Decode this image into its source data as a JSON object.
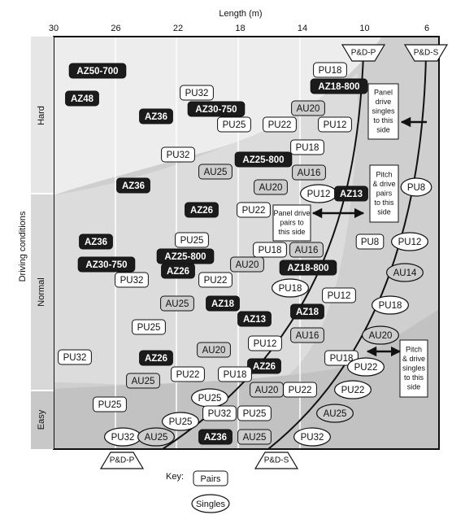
{
  "chart_data": {
    "type": "table",
    "xlabel": "Length (m)",
    "ylabel": "Driving conditions",
    "x_ticks": [
      30,
      26,
      22,
      18,
      14,
      10,
      6
    ],
    "xlim": [
      30,
      6
    ],
    "y_bands": [
      "Hard",
      "Normal",
      "Easy"
    ],
    "top_markers": [
      "P&D-P",
      "P&D-S"
    ],
    "bottom_markers": [
      "P&D-P",
      "P&D-S"
    ],
    "key": {
      "title": "Key:",
      "pairs": "Pairs",
      "singles": "Singles"
    },
    "annotations": [
      [
        "Panel",
        "drive",
        "singles",
        "to this",
        "side"
      ],
      [
        "Pitch",
        "& drive",
        "pairs",
        "to this",
        "side"
      ],
      [
        "Panel drive",
        "pairs to",
        "this side"
      ],
      [
        "Pitch",
        "& drive",
        "singles",
        "to this",
        "side"
      ]
    ],
    "boxes": [
      {
        "label": "AZ50-700",
        "style": "dark"
      },
      {
        "label": "AZ48",
        "style": "dark"
      },
      {
        "label": "PU18",
        "style": "white"
      },
      {
        "label": "AZ18-800",
        "style": "dark"
      },
      {
        "label": "PU32",
        "style": "white"
      },
      {
        "label": "AU20",
        "style": "grey"
      },
      {
        "label": "AZ30-750",
        "style": "dark"
      },
      {
        "label": "AZ36",
        "style": "dark"
      },
      {
        "label": "PU25",
        "style": "white"
      },
      {
        "label": "PU22",
        "style": "white"
      },
      {
        "label": "PU12",
        "style": "white"
      },
      {
        "label": "PU18",
        "style": "white"
      },
      {
        "label": "PU32",
        "style": "white"
      },
      {
        "label": "AZ25-800",
        "style": "dark"
      },
      {
        "label": "AU25",
        "style": "grey"
      },
      {
        "label": "AU16",
        "style": "grey"
      },
      {
        "label": "AZ36",
        "style": "dark"
      },
      {
        "label": "AU20",
        "style": "grey"
      },
      {
        "label": "PU12",
        "style": "oval"
      },
      {
        "label": "AZ13",
        "style": "dark"
      },
      {
        "label": "PU8",
        "style": "oval"
      },
      {
        "label": "AZ26",
        "style": "dark"
      },
      {
        "label": "PU22",
        "style": "white"
      },
      {
        "label": "AZ36",
        "style": "dark"
      },
      {
        "label": "PU25",
        "style": "white"
      },
      {
        "label": "PU8",
        "style": "white"
      },
      {
        "label": "PU12",
        "style": "oval"
      },
      {
        "label": "PU18",
        "style": "white"
      },
      {
        "label": "AU16",
        "style": "grey"
      },
      {
        "label": "AZ25-800",
        "style": "dark"
      },
      {
        "label": "AZ30-750",
        "style": "dark"
      },
      {
        "label": "AU20",
        "style": "grey"
      },
      {
        "label": "AZ18-800",
        "style": "dark"
      },
      {
        "label": "AZ26",
        "style": "dark"
      },
      {
        "label": "AU14",
        "style": "ovalgrey"
      },
      {
        "label": "PU32",
        "style": "white"
      },
      {
        "label": "PU22",
        "style": "white"
      },
      {
        "label": "PU18",
        "style": "oval"
      },
      {
        "label": "PU12",
        "style": "white"
      },
      {
        "label": "AU25",
        "style": "grey"
      },
      {
        "label": "AZ18",
        "style": "dark"
      },
      {
        "label": "PU18",
        "style": "oval"
      },
      {
        "label": "AZ13",
        "style": "dark"
      },
      {
        "label": "AZ18",
        "style": "dark"
      },
      {
        "label": "PU25",
        "style": "white"
      },
      {
        "label": "AU16",
        "style": "grey"
      },
      {
        "label": "AU20",
        "style": "ovalgrey"
      },
      {
        "label": "PU12",
        "style": "white"
      },
      {
        "label": "AU20",
        "style": "grey"
      },
      {
        "label": "PU32",
        "style": "white"
      },
      {
        "label": "AZ26",
        "style": "dark"
      },
      {
        "label": "PU18",
        "style": "white"
      },
      {
        "label": "AZ26",
        "style": "dark"
      },
      {
        "label": "PU22",
        "style": "oval"
      },
      {
        "label": "PU22",
        "style": "white"
      },
      {
        "label": "PU18",
        "style": "white"
      },
      {
        "label": "AU25",
        "style": "grey"
      },
      {
        "label": "AU20",
        "style": "grey"
      },
      {
        "label": "PU22",
        "style": "white"
      },
      {
        "label": "PU25",
        "style": "oval"
      },
      {
        "label": "PU22",
        "style": "oval"
      },
      {
        "label": "PU25",
        "style": "white"
      },
      {
        "label": "PU32",
        "style": "white"
      },
      {
        "label": "PU25",
        "style": "white"
      },
      {
        "label": "AU25",
        "style": "ovalgrey"
      },
      {
        "label": "PU25",
        "style": "oval"
      },
      {
        "label": "PU32",
        "style": "oval"
      },
      {
        "label": "AU25",
        "style": "ovalgrey"
      },
      {
        "label": "AZ36",
        "style": "dark"
      },
      {
        "label": "AU25",
        "style": "grey"
      },
      {
        "label": "PU32",
        "style": "oval"
      }
    ]
  }
}
